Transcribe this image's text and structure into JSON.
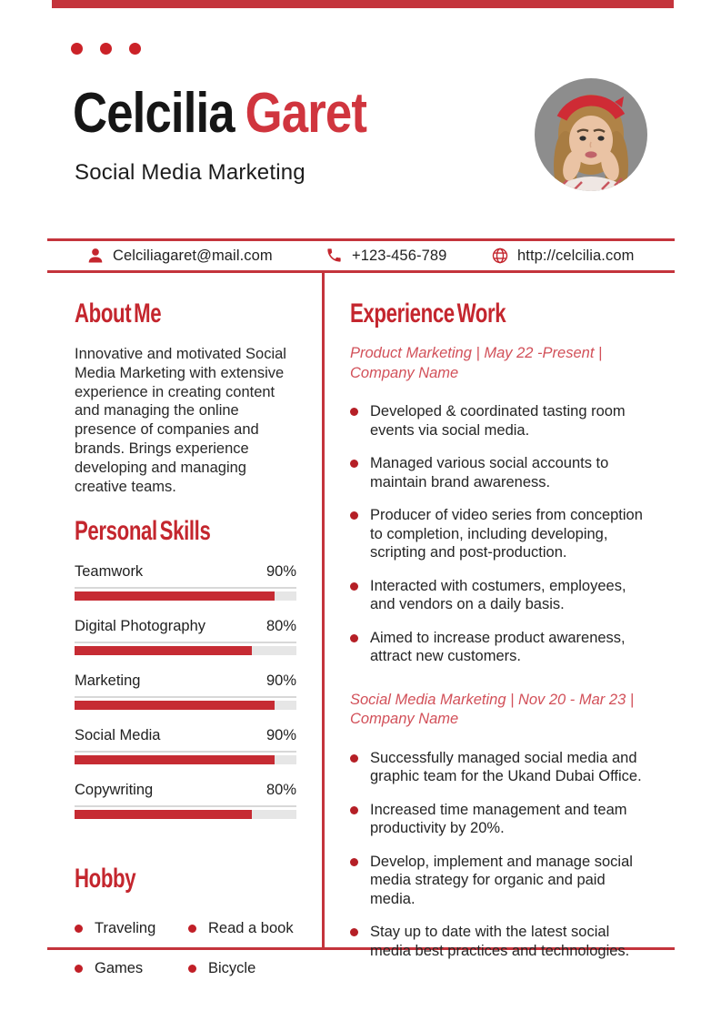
{
  "colors": {
    "primary_red": "#c4343c",
    "heading_red": "#c4262e",
    "name_red": "#d0353e",
    "job_title_red": "#d25059",
    "bar_red": "#c62b33",
    "text_dark": "#252525"
  },
  "header": {
    "first_name": "Celcilia",
    "last_name": "Garet",
    "subtitle": "Social Media Marketing"
  },
  "contact": {
    "email": "Celciliagaret@mail.com",
    "phone": "+123-456-789",
    "website": "http://celcilia.com"
  },
  "about": {
    "heading": "About Me",
    "body": "Innovative and motivated Social Media Marketing with extensive experience in creating content and managing the online presence of companies and brands. Brings experience developing and managing creative teams."
  },
  "skills": {
    "heading": "Personal Skills",
    "items": [
      {
        "label": "Teamwork",
        "percent": "90%"
      },
      {
        "label": "Digital Photography",
        "percent": "80%"
      },
      {
        "label": "Marketing",
        "percent": "90%"
      },
      {
        "label": "Social Media",
        "percent": "90%"
      },
      {
        "label": "Copywriting",
        "percent": "80%"
      }
    ]
  },
  "hobby": {
    "heading": "Hobby",
    "items": [
      "Traveling",
      "Read a book",
      "Games",
      "Bicycle"
    ]
  },
  "experience": {
    "heading": "Experience Work",
    "jobs": [
      {
        "title": "Product Marketing | May 22 -Present | Company Name",
        "bullets": [
          "Developed & coordinated tasting room events via social media.",
          "Managed various social accounts to maintain brand awareness.",
          "Producer of video series from conception to completion, including developing, scripting and post-production.",
          "Interacted with costumers, employees, and vendors on a daily basis.",
          "Aimed to increase product awareness, attract new customers."
        ]
      },
      {
        "title": "Social Media Marketing | Nov 20 - Mar 23 | Company Name",
        "bullets": [
          "Successfully managed social media and graphic team for the Ukand Dubai Office.",
          "Increased time management and team productivity by 20%.",
          "Develop, implement and manage social media strategy for organic and paid media.",
          "Stay up to date with the latest social media best practices and technologies."
        ]
      }
    ]
  }
}
